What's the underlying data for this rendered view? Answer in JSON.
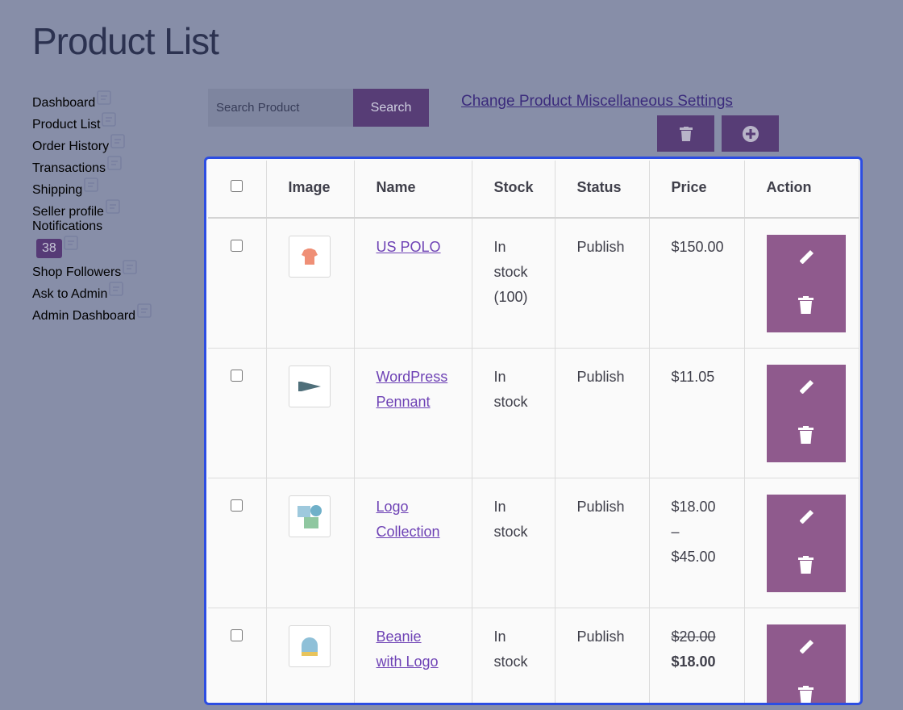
{
  "header": {
    "title": "Product List"
  },
  "sidebar": {
    "items": [
      {
        "label": "Dashboard"
      },
      {
        "label": "Product List"
      },
      {
        "label": "Order History"
      },
      {
        "label": "Transactions"
      },
      {
        "label": "Shipping"
      },
      {
        "label": "Seller profile"
      },
      {
        "label": "Notifications",
        "badge": "38"
      },
      {
        "label": "Shop Followers"
      },
      {
        "label": "Ask to Admin"
      },
      {
        "label": "Admin Dashboard"
      }
    ]
  },
  "toolbar": {
    "search_placeholder": "Search Product",
    "search_button": "Search",
    "settings_link": "Change Product Miscellaneous Settings"
  },
  "table": {
    "headers": [
      "Image",
      "Name",
      "Stock",
      "Status",
      "Price",
      "Action"
    ],
    "rows": [
      {
        "name": "US POLO",
        "stock": "In stock (100)",
        "status": "Publish",
        "price": "$150.00"
      },
      {
        "name": "WordPress Pennant",
        "stock": "In stock",
        "status": "Publish",
        "price": "$11.05"
      },
      {
        "name": "Logo Collection",
        "stock": "In stock",
        "status": "Publish",
        "price": "$18.00 – $45.00"
      },
      {
        "name": "Beanie with Logo",
        "stock": "In stock",
        "status": "Publish",
        "regular_price": "$20.00",
        "price": "$18.00"
      }
    ]
  }
}
